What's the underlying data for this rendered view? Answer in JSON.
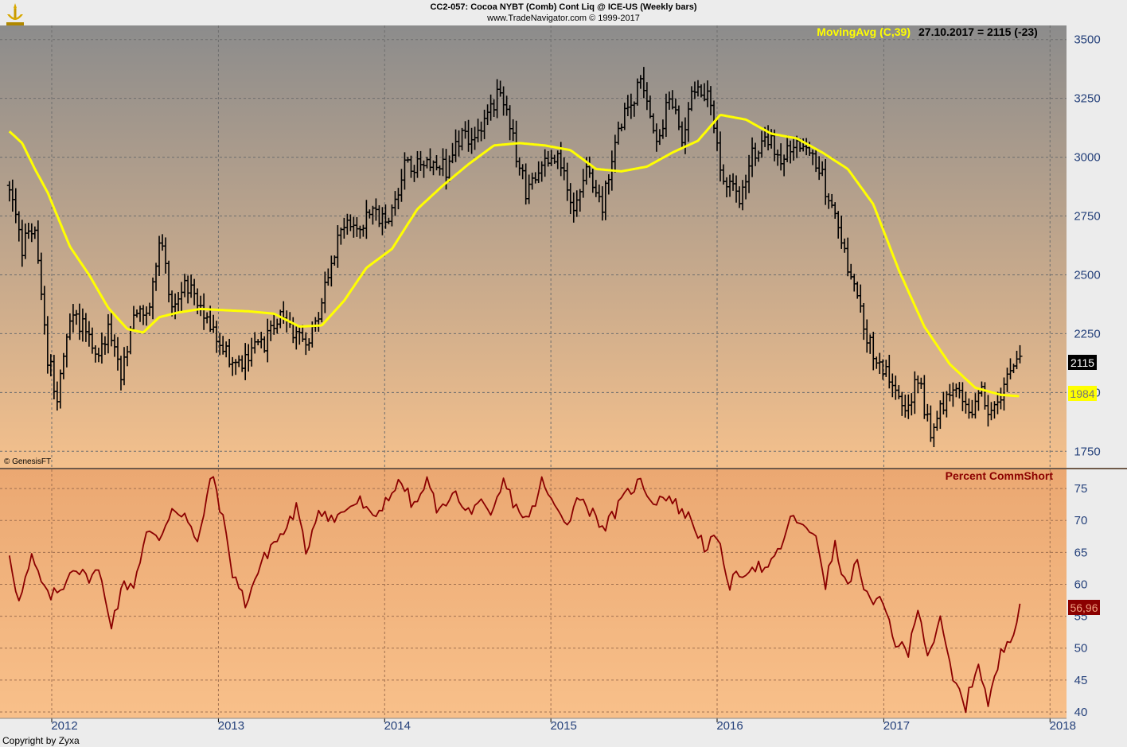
{
  "header": {
    "title": "CC2-057:  Cocoa NYBT (Comb) Cont Liq @ ICE-US  (Weekly bars)",
    "subtitle": "www.TradeNavigator.com © 1999-2017"
  },
  "colors": {
    "price_bars": "#000000",
    "moving_average": "#ffff00",
    "comm_short_line": "#8b0000",
    "top_panel_bg_top": "#8c8c8c",
    "top_panel_bg_bottom": "#f4c08c",
    "bottom_panel_bg_top": "#eba872",
    "bottom_panel_bg_bottom": "#f8c08a"
  },
  "footer": {
    "copyright": "Copyright by Zyxa",
    "genesis": "© GenesisFT"
  },
  "chart_data": [
    {
      "type": "ohlc",
      "panel": "price",
      "legend": {
        "name": "MovingAvg (C,39)",
        "info": "27.10.2017 = 2115 (-23)"
      },
      "ylim": [
        1680,
        3560
      ],
      "yticks": [
        1750,
        2000,
        2250,
        2500,
        2750,
        3000,
        3250,
        3500
      ],
      "last_value_label": "2115",
      "ma_value_label": "1984",
      "x_start": "2011-09-30",
      "x_end": "2017-10-27",
      "keypoints": [
        [
          "2011-09-30",
          2880
        ],
        [
          "2011-10-28",
          2620
        ],
        [
          "2011-11-25",
          2700
        ],
        [
          "2011-12-23",
          2150
        ],
        [
          "2012-01-13",
          1990
        ],
        [
          "2012-02-10",
          2330
        ],
        [
          "2012-03-09",
          2280
        ],
        [
          "2012-04-06",
          2160
        ],
        [
          "2012-05-04",
          2270
        ],
        [
          "2012-06-01",
          2080
        ],
        [
          "2012-06-29",
          2330
        ],
        [
          "2012-08-03",
          2350
        ],
        [
          "2012-08-24",
          2650
        ],
        [
          "2012-09-21",
          2390
        ],
        [
          "2012-10-19",
          2450
        ],
        [
          "2012-11-23",
          2370
        ],
        [
          "2012-12-21",
          2250
        ],
        [
          "2013-02-08",
          2110
        ],
        [
          "2013-03-08",
          2160
        ],
        [
          "2013-04-12",
          2200
        ],
        [
          "2013-05-17",
          2340
        ],
        [
          "2013-06-14",
          2250
        ],
        [
          "2013-07-19",
          2200
        ],
        [
          "2013-08-16",
          2400
        ],
        [
          "2013-09-20",
          2650
        ],
        [
          "2013-10-18",
          2720
        ],
        [
          "2013-11-22",
          2740
        ],
        [
          "2014-01-17",
          2770
        ],
        [
          "2014-02-14",
          2980
        ],
        [
          "2014-03-14",
          2960
        ],
        [
          "2014-04-18",
          2990
        ],
        [
          "2014-05-16",
          2940
        ],
        [
          "2014-06-13",
          3070
        ],
        [
          "2014-07-18",
          3110
        ],
        [
          "2014-08-15",
          3170
        ],
        [
          "2014-09-12",
          3290
        ],
        [
          "2014-10-10",
          3070
        ],
        [
          "2014-11-07",
          2860
        ],
        [
          "2014-12-12",
          2950
        ],
        [
          "2015-01-23",
          2990
        ],
        [
          "2015-02-20",
          2760
        ],
        [
          "2015-03-20",
          2960
        ],
        [
          "2015-04-24",
          2800
        ],
        [
          "2015-05-22",
          3050
        ],
        [
          "2015-06-19",
          3220
        ],
        [
          "2015-07-17",
          3300
        ],
        [
          "2015-08-21",
          3080
        ],
        [
          "2015-09-18",
          3240
        ],
        [
          "2015-10-16",
          3100
        ],
        [
          "2015-11-13",
          3300
        ],
        [
          "2015-12-18",
          3230
        ],
        [
          "2016-01-15",
          2900
        ],
        [
          "2016-02-19",
          2820
        ],
        [
          "2016-03-18",
          3000
        ],
        [
          "2016-04-22",
          3090
        ],
        [
          "2016-05-20",
          2960
        ],
        [
          "2016-06-17",
          3080
        ],
        [
          "2016-07-15",
          3020
        ],
        [
          "2016-08-12",
          2950
        ],
        [
          "2016-09-16",
          2750
        ],
        [
          "2016-10-14",
          2550
        ],
        [
          "2016-11-18",
          2280
        ],
        [
          "2016-12-16",
          2150
        ],
        [
          "2017-01-20",
          2050
        ],
        [
          "2017-02-17",
          1900
        ],
        [
          "2017-03-17",
          2070
        ],
        [
          "2017-04-14",
          1820
        ],
        [
          "2017-05-12",
          1960
        ],
        [
          "2017-06-09",
          2020
        ],
        [
          "2017-07-07",
          1890
        ],
        [
          "2017-07-28",
          2030
        ],
        [
          "2017-08-25",
          1910
        ],
        [
          "2017-09-22",
          2010
        ],
        [
          "2017-10-13",
          2110
        ],
        [
          "2017-10-27",
          2115
        ]
      ],
      "moving_average": [
        [
          "2011-09-30",
          3110
        ],
        [
          "2011-10-28",
          3060
        ],
        [
          "2011-11-25",
          2950
        ],
        [
          "2011-12-23",
          2850
        ],
        [
          "2012-02-10",
          2620
        ],
        [
          "2012-03-23",
          2500
        ],
        [
          "2012-05-04",
          2360
        ],
        [
          "2012-06-15",
          2270
        ],
        [
          "2012-07-20",
          2255
        ],
        [
          "2012-08-24",
          2320
        ],
        [
          "2012-10-05",
          2340
        ],
        [
          "2012-11-23",
          2355
        ],
        [
          "2013-01-11",
          2350
        ],
        [
          "2013-03-08",
          2345
        ],
        [
          "2013-05-03",
          2335
        ],
        [
          "2013-06-28",
          2280
        ],
        [
          "2013-08-16",
          2285
        ],
        [
          "2013-10-04",
          2390
        ],
        [
          "2013-11-22",
          2530
        ],
        [
          "2014-01-17",
          2610
        ],
        [
          "2014-03-14",
          2780
        ],
        [
          "2014-05-09",
          2880
        ],
        [
          "2014-07-04",
          2970
        ],
        [
          "2014-08-29",
          3050
        ],
        [
          "2014-10-24",
          3060
        ],
        [
          "2014-12-19",
          3050
        ],
        [
          "2015-02-13",
          3030
        ],
        [
          "2015-04-10",
          2950
        ],
        [
          "2015-06-05",
          2940
        ],
        [
          "2015-07-31",
          2960
        ],
        [
          "2015-09-25",
          3020
        ],
        [
          "2015-11-20",
          3070
        ],
        [
          "2016-01-08",
          3180
        ],
        [
          "2016-03-04",
          3160
        ],
        [
          "2016-04-29",
          3100
        ],
        [
          "2016-06-24",
          3080
        ],
        [
          "2016-08-19",
          3020
        ],
        [
          "2016-10-14",
          2950
        ],
        [
          "2016-12-09",
          2800
        ],
        [
          "2017-02-03",
          2520
        ],
        [
          "2017-03-31",
          2280
        ],
        [
          "2017-05-26",
          2120
        ],
        [
          "2017-07-21",
          2020
        ],
        [
          "2017-09-15",
          1990
        ],
        [
          "2017-10-27",
          1984
        ]
      ]
    },
    {
      "type": "line",
      "panel": "indicator",
      "name": "Percent CommShort",
      "ylim": [
        39,
        78
      ],
      "yticks": [
        40,
        45,
        50,
        55,
        60,
        65,
        70,
        75
      ],
      "last_value_label": "56,96",
      "values": [
        [
          "2011-09-30",
          65
        ],
        [
          "2011-10-21",
          57
        ],
        [
          "2011-11-18",
          64
        ],
        [
          "2011-12-23",
          58
        ],
        [
          "2012-01-20",
          59
        ],
        [
          "2012-02-17",
          63
        ],
        [
          "2012-03-16",
          61
        ],
        [
          "2012-04-13",
          62
        ],
        [
          "2012-05-11",
          54
        ],
        [
          "2012-06-08",
          60
        ],
        [
          "2012-06-29",
          60
        ],
        [
          "2012-07-27",
          68
        ],
        [
          "2012-08-24",
          67
        ],
        [
          "2012-09-21",
          72
        ],
        [
          "2012-10-19",
          71
        ],
        [
          "2012-11-16",
          66
        ],
        [
          "2012-12-07",
          74
        ],
        [
          "2012-12-21",
          77
        ],
        [
          "2013-01-11",
          70
        ],
        [
          "2013-02-01",
          62
        ],
        [
          "2013-03-01",
          57
        ],
        [
          "2013-03-29",
          62
        ],
        [
          "2013-04-26",
          66
        ],
        [
          "2013-05-24",
          68
        ],
        [
          "2013-06-21",
          72
        ],
        [
          "2013-07-12",
          65
        ],
        [
          "2013-08-09",
          72
        ],
        [
          "2013-09-13",
          70
        ],
        [
          "2013-10-11",
          72
        ],
        [
          "2013-11-08",
          73
        ],
        [
          "2013-12-06",
          70
        ],
        [
          "2014-01-10",
          74
        ],
        [
          "2014-02-07",
          76
        ],
        [
          "2014-03-07",
          72
        ],
        [
          "2014-04-04",
          76
        ],
        [
          "2014-05-02",
          71
        ],
        [
          "2014-05-30",
          75
        ],
        [
          "2014-06-27",
          71
        ],
        [
          "2014-07-25",
          73
        ],
        [
          "2014-08-22",
          70
        ],
        [
          "2014-09-19",
          76
        ],
        [
          "2014-10-17",
          72
        ],
        [
          "2014-11-14",
          70
        ],
        [
          "2014-12-12",
          76
        ],
        [
          "2015-01-09",
          72
        ],
        [
          "2015-02-06",
          70
        ],
        [
          "2015-03-06",
          74
        ],
        [
          "2015-04-03",
          71
        ],
        [
          "2015-05-01",
          69
        ],
        [
          "2015-05-29",
          72
        ],
        [
          "2015-06-26",
          75
        ],
        [
          "2015-07-17",
          76
        ],
        [
          "2015-08-14",
          73
        ],
        [
          "2015-09-11",
          74
        ],
        [
          "2015-10-09",
          72
        ],
        [
          "2015-11-06",
          70
        ],
        [
          "2015-12-04",
          66
        ],
        [
          "2016-01-01",
          67
        ],
        [
          "2016-01-29",
          60
        ],
        [
          "2016-02-26",
          62
        ],
        [
          "2016-03-25",
          63
        ],
        [
          "2016-04-22",
          62
        ],
        [
          "2016-05-20",
          66
        ],
        [
          "2016-06-17",
          71
        ],
        [
          "2016-07-15",
          68
        ],
        [
          "2016-08-05",
          68
        ],
        [
          "2016-08-26",
          60
        ],
        [
          "2016-09-16",
          66
        ],
        [
          "2016-10-07",
          60
        ],
        [
          "2016-11-04",
          63
        ],
        [
          "2016-12-02",
          57
        ],
        [
          "2016-12-30",
          57
        ],
        [
          "2017-01-27",
          51
        ],
        [
          "2017-02-24",
          49
        ],
        [
          "2017-03-17",
          57
        ],
        [
          "2017-04-07",
          49
        ],
        [
          "2017-05-05",
          54
        ],
        [
          "2017-06-02",
          45
        ],
        [
          "2017-06-30",
          41
        ],
        [
          "2017-07-28",
          48
        ],
        [
          "2017-08-18",
          41
        ],
        [
          "2017-09-15",
          49
        ],
        [
          "2017-10-13",
          53
        ],
        [
          "2017-10-27",
          56.96
        ]
      ]
    }
  ],
  "xaxis": {
    "labels": [
      {
        "label": "2012",
        "date": "2012-01-01"
      },
      {
        "label": "2013",
        "date": "2013-01-01"
      },
      {
        "label": "2014",
        "date": "2014-01-01"
      },
      {
        "label": "2015",
        "date": "2015-01-01"
      },
      {
        "label": "2016",
        "date": "2016-01-01"
      },
      {
        "label": "2017",
        "date": "2017-01-01"
      },
      {
        "label": "2018",
        "date": "2018-01-01"
      }
    ]
  }
}
